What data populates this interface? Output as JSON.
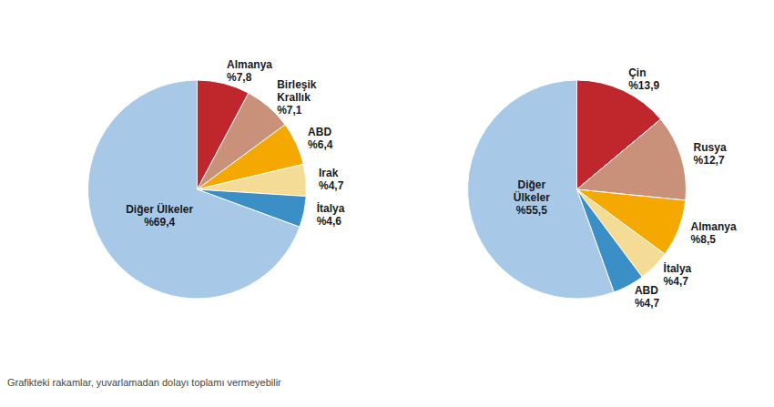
{
  "chart_data": [
    {
      "type": "pie",
      "categories": [
        "Almanya",
        "Birleşik\nKrallık",
        "ABD",
        "Irak",
        "İtalya",
        "Diğer Ülkeler"
      ],
      "values": [
        7.8,
        7.1,
        6.4,
        4.7,
        4.6,
        69.4
      ],
      "value_labels": [
        "%7,8",
        "%7,1",
        "%6,4",
        "%4,7",
        "%4,6",
        "%69,4"
      ],
      "colors": [
        "#c0272d",
        "#c9917a",
        "#f5a800",
        "#f5dc96",
        "#3a8fc7",
        "#a8c8e8"
      ],
      "data_labels": true,
      "annotations": [
        "Grafikteki rakamlar, yuvarlamadan dolayı toplamı vermeyebilir"
      ]
    },
    {
      "type": "pie",
      "categories": [
        "Çin",
        "Rusya",
        "Almanya",
        "İtalya",
        "ABD",
        "Diğer\nÜlkeler"
      ],
      "values": [
        13.9,
        12.7,
        8.5,
        4.7,
        4.7,
        55.5
      ],
      "value_labels": [
        "%13,9",
        "%12,7",
        "%8,5",
        "%4,7",
        "%4,7",
        "%55,5"
      ],
      "colors": [
        "#c0272d",
        "#c9917a",
        "#f5a800",
        "#f5dc96",
        "#3a8fc7",
        "#a8c8e8"
      ],
      "data_labels": true
    }
  ]
}
